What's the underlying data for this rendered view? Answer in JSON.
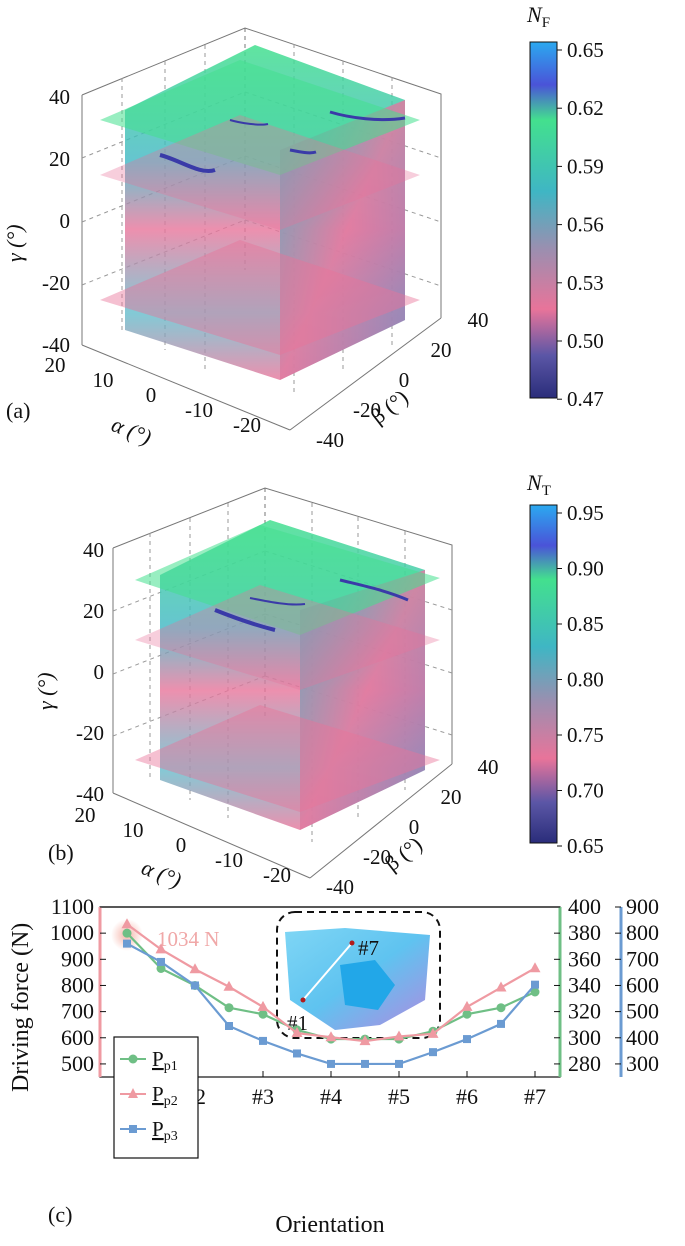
{
  "chart_data": [
    {
      "type": "heatmap",
      "panel_label": "(a)",
      "colorbar": {
        "label": "N",
        "label_sub": "F",
        "ticks": [
          "0.65",
          "0.62",
          "0.59",
          "0.56",
          "0.53",
          "0.50",
          "0.47"
        ],
        "min": 0.47,
        "max": 0.65
      },
      "zlabel": "γ (°)",
      "xlabel": "α (°)",
      "ylabel": "β (°)",
      "z_ticks": [
        "40",
        "20",
        "0",
        "-20",
        "-40"
      ],
      "x_ticks": [
        "20",
        "10",
        "0",
        "-10",
        "-20"
      ],
      "y_ticks": [
        "-40",
        "-20",
        "0",
        "20",
        "40"
      ],
      "colors": [
        "#2a2d7a",
        "#5b56a6",
        "#e8749a",
        "#9a8fb0",
        "#3fb6c4",
        "#43e08e",
        "#4a53d8",
        "#2ba9f0"
      ]
    },
    {
      "type": "heatmap",
      "panel_label": "(b)",
      "colorbar": {
        "label": "N",
        "label_sub": "T",
        "ticks": [
          "0.95",
          "0.90",
          "0.85",
          "0.80",
          "0.75",
          "0.70",
          "0.65"
        ],
        "min": 0.65,
        "max": 0.95
      },
      "zlabel": "γ (°)",
      "xlabel": "α (°)",
      "ylabel": "β (°)",
      "z_ticks": [
        "40",
        "20",
        "0",
        "-20",
        "-40"
      ],
      "x_ticks": [
        "20",
        "10",
        "0",
        "-10",
        "-20"
      ],
      "y_ticks": [
        "-40",
        "-20",
        "0",
        "20",
        "40"
      ]
    },
    {
      "type": "line",
      "panel_label": "(c)",
      "xlabel": "Orientation",
      "ylabel": "Driving force (N)",
      "x_ticks": [
        "#1",
        "#2",
        "#3",
        "#4",
        "#5",
        "#6",
        "#7"
      ],
      "x": [
        1,
        1.5,
        2,
        2.5,
        3,
        3.5,
        4,
        4.5,
        5,
        5.5,
        6,
        6.5,
        7
      ],
      "ylim_left": [
        450,
        1100
      ],
      "left_ticks": [
        "1100",
        "1000",
        "900",
        "800",
        "700",
        "600",
        "500"
      ],
      "ylim_mid": [
        270,
        400
      ],
      "mid_ticks": [
        "400",
        "380",
        "360",
        "340",
        "320",
        "300",
        "280"
      ],
      "ylim_right": [
        250,
        900
      ],
      "right_ticks": [
        "900",
        "800",
        "700",
        "600",
        "500",
        "400",
        "300"
      ],
      "series": [
        {
          "name": "P",
          "name_sub": "p1",
          "color": "#6fbf85",
          "marker": "circle",
          "axis": "mid",
          "values": [
            380,
            353,
            340,
            323,
            318,
            306,
            299,
            299,
            299,
            305,
            318,
            323,
            335
          ]
        },
        {
          "name": "P",
          "name_sub": "p2",
          "color": "#ef9aa2",
          "marker": "triangle",
          "axis": "left",
          "values": [
            1034,
            938,
            862,
            795,
            718,
            618,
            602,
            587,
            605,
            615,
            718,
            792,
            866
          ]
        },
        {
          "name": "P",
          "name_sub": "p3",
          "color": "#6b9bd2",
          "marker": "square",
          "axis": "right",
          "values": [
            760,
            690,
            600,
            445,
            388,
            340,
            300,
            300,
            300,
            345,
            395,
            453,
            603
          ]
        }
      ],
      "annotation_peak": "1034 N",
      "inset_labels": [
        "#7",
        "#1"
      ]
    }
  ]
}
